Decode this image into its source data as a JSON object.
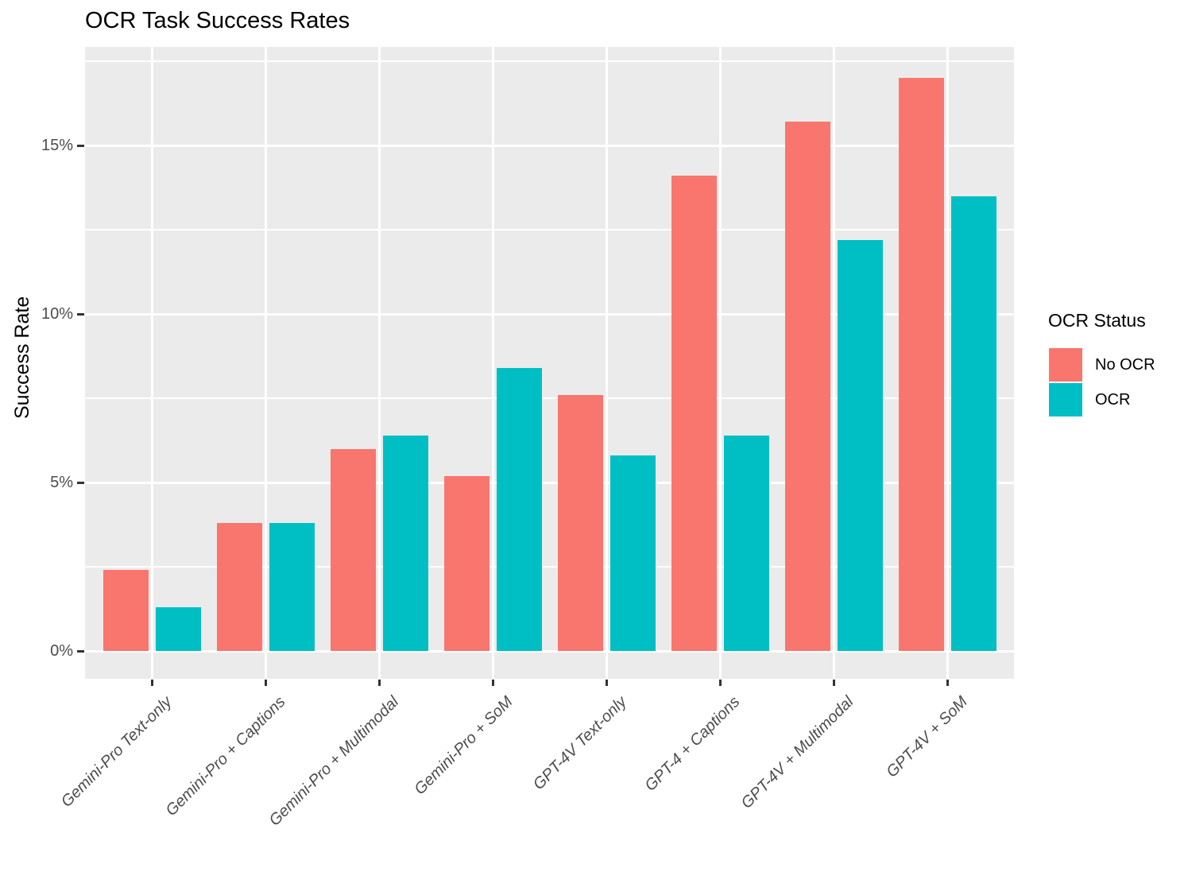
{
  "chart_data": {
    "type": "bar",
    "title": "OCR Task Success Rates",
    "xlabel": "",
    "ylabel": "Success Rate",
    "unit": "%",
    "categories": [
      "Gemini-Pro Text-only",
      "Gemini-Pro + Captions",
      "Gemini-Pro + Multimodal",
      "Gemini-Pro + SoM",
      "GPT-4V Text-only",
      "GPT-4 + Captions",
      "GPT-4V + Multimodal",
      "GPT-4V + SoM"
    ],
    "series": [
      {
        "name": "No OCR",
        "color": "#F8766D",
        "values": [
          2.4,
          3.8,
          6.0,
          5.2,
          7.6,
          14.1,
          15.7,
          17.0
        ]
      },
      {
        "name": "OCR",
        "color": "#00BFC4",
        "values": [
          1.3,
          3.8,
          6.4,
          8.4,
          5.8,
          6.4,
          12.2,
          13.5
        ]
      }
    ],
    "y_axis": {
      "label": "Success Rate",
      "ticks": [
        {
          "value": 0,
          "label": "0%"
        },
        {
          "value": 5,
          "label": "5%"
        },
        {
          "value": 10,
          "label": "10%"
        },
        {
          "value": 15,
          "label": "15%"
        }
      ],
      "minor_ticks": [
        2.5,
        7.5,
        12.5,
        17.5
      ],
      "ylim": [
        0,
        17.9
      ]
    },
    "legend": {
      "title": "OCR Status",
      "position": "right",
      "entries": [
        "No OCR",
        "OCR"
      ]
    },
    "style": {
      "panel_bg": "#EBEBEB",
      "grid_color": "#FFFFFF",
      "axis_text_color": "#4D4D4D",
      "tick_color": "#333333",
      "text_color": "#000000",
      "background": "#FFFFFF",
      "grid": "on"
    }
  }
}
